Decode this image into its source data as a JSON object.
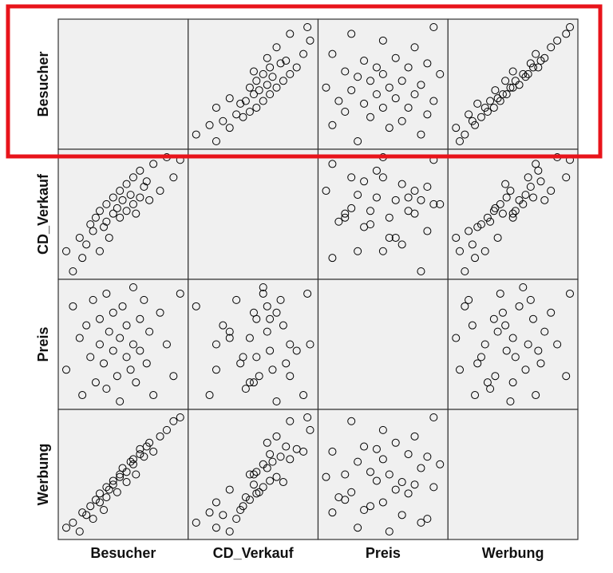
{
  "chart_data": {
    "type": "scatter-matrix",
    "variables": [
      {
        "name": "Besucher",
        "values": [
          10,
          15,
          20,
          22,
          25,
          28,
          30,
          32,
          35,
          35,
          38,
          40,
          40,
          42,
          45,
          45,
          48,
          50,
          50,
          52,
          55,
          55,
          58,
          60,
          60,
          62,
          65,
          65,
          68,
          70,
          72,
          75,
          80,
          85,
          90,
          95
        ]
      },
      {
        "name": "CD_Verkauf",
        "values": [
          20,
          5,
          30,
          15,
          25,
          40,
          35,
          45,
          20,
          50,
          38,
          55,
          42,
          30,
          60,
          48,
          52,
          45,
          65,
          58,
          50,
          70,
          62,
          55,
          75,
          48,
          60,
          80,
          68,
          72,
          58,
          85,
          65,
          90,
          75,
          88
        ]
      },
      {
        "name": "Preis",
        "values": [
          30,
          80,
          55,
          10,
          65,
          40,
          85,
          20,
          50,
          70,
          35,
          90,
          15,
          60,
          45,
          75,
          25,
          55,
          5,
          80,
          40,
          65,
          30,
          95,
          50,
          20,
          70,
          45,
          85,
          35,
          60,
          10,
          75,
          50,
          25,
          90
        ]
      },
      {
        "name": "Werbung",
        "values": [
          8,
          12,
          5,
          20,
          18,
          25,
          15,
          30,
          28,
          35,
          22,
          40,
          32,
          38,
          45,
          42,
          36,
          50,
          48,
          55,
          52,
          44,
          60,
          58,
          62,
          50,
          66,
          70,
          64,
          72,
          75,
          68,
          80,
          85,
          92,
          95
        ]
      }
    ],
    "color": "#000000",
    "highlight_color": "#e8141b"
  }
}
